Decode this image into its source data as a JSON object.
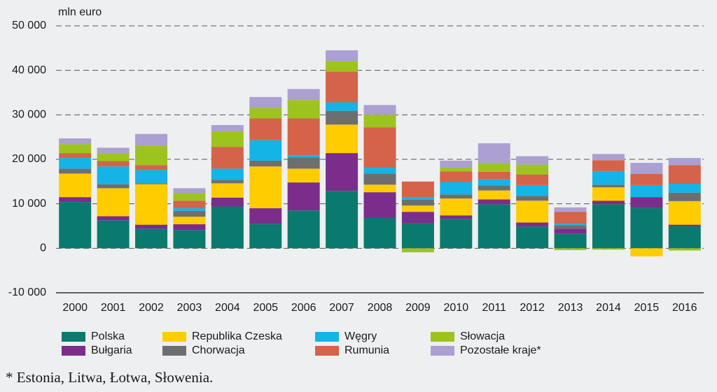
{
  "chart_data": {
    "type": "stacked_bar",
    "y_label": "mln euro",
    "categories": [
      "2000",
      "2001",
      "2002",
      "2003",
      "2004",
      "2005",
      "2006",
      "2007",
      "2008",
      "2009",
      "2010",
      "2011",
      "2012",
      "2013",
      "2014",
      "2015",
      "2016"
    ],
    "series": [
      {
        "name": "Polska",
        "color": "#0a7a6e",
        "values": [
          10400,
          6300,
          4400,
          4100,
          9400,
          5500,
          8500,
          12900,
          6800,
          5700,
          6600,
          9900,
          4900,
          3300,
          9900,
          9100,
          5000
        ]
      },
      {
        "name": "Bułgaria",
        "color": "#7b2d8b",
        "values": [
          1100,
          900,
          900,
          1300,
          2000,
          3500,
          6300,
          8500,
          5800,
          2500,
          800,
          1100,
          900,
          1100,
          800,
          2400,
          300
        ]
      },
      {
        "name": "Republika Czeska",
        "color": "#ffcc00",
        "values": [
          5300,
          6300,
          9100,
          1700,
          3200,
          9400,
          3100,
          6400,
          1700,
          1400,
          3800,
          2000,
          4900,
          0,
          3000,
          -1800,
          5300
        ]
      },
      {
        "name": "Chorwacja",
        "color": "#6d6e70",
        "values": [
          1100,
          900,
          200,
          1300,
          800,
          1300,
          2500,
          3100,
          2500,
          1300,
          900,
          1100,
          1100,
          800,
          600,
          0,
          1900
        ]
      },
      {
        "name": "Węgry",
        "color": "#14b4e6",
        "values": [
          2400,
          4000,
          3000,
          600,
          2500,
          4600,
          500,
          1900,
          1300,
          600,
          2800,
          1400,
          2400,
          300,
          3000,
          2700,
          2000
        ]
      },
      {
        "name": "Rumunia",
        "color": "#d4634a",
        "values": [
          1100,
          1200,
          1100,
          1700,
          4900,
          4900,
          8300,
          6900,
          9100,
          3500,
          2400,
          1700,
          2400,
          2700,
          2500,
          2500,
          4200
        ]
      },
      {
        "name": "Słowacja",
        "color": "#9dc31e",
        "values": [
          2000,
          1800,
          4300,
          1700,
          3500,
          2400,
          4100,
          2400,
          2800,
          -900,
          800,
          2000,
          2200,
          -400,
          -300,
          0,
          -500
        ]
      },
      {
        "name": "Pozostałe kraje*",
        "color": "#ac9fd2",
        "values": [
          1300,
          1200,
          2700,
          1100,
          1400,
          2400,
          2500,
          2400,
          2200,
          0,
          1600,
          4400,
          1900,
          1000,
          1400,
          2500,
          1600
        ]
      }
    ],
    "ylim": [
      -10000,
      50000
    ],
    "yticks": [
      {
        "value": -10000,
        "label": "-10 000"
      },
      {
        "value": 0,
        "label": "0"
      },
      {
        "value": 10000,
        "label": "10 000"
      },
      {
        "value": 20000,
        "label": "20 000"
      },
      {
        "value": 30000,
        "label": "30 000"
      },
      {
        "value": 40000,
        "label": "40 000"
      },
      {
        "value": 50000,
        "label": "50 000"
      }
    ],
    "grid": true,
    "footnote": "* Estonia, Litwa, Łotwa, Słowenia."
  }
}
